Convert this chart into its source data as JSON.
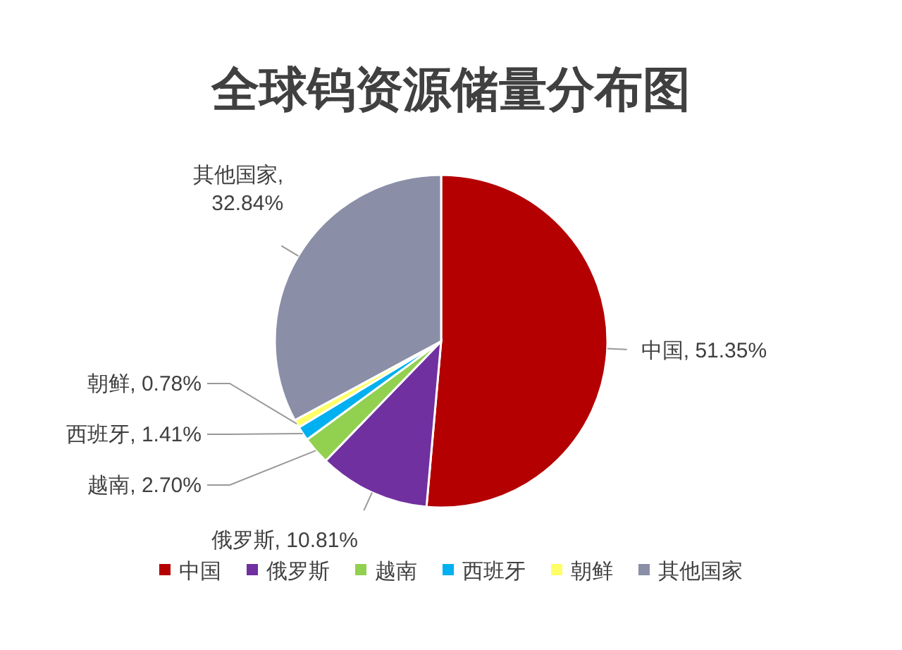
{
  "chart_data": {
    "type": "pie",
    "title": "全球钨资源储量分布图",
    "categories": [
      "中国",
      "俄罗斯",
      "越南",
      "西班牙",
      "朝鲜",
      "其他国家"
    ],
    "values": [
      51.35,
      10.81,
      2.7,
      1.41,
      0.78,
      32.84
    ],
    "colors": [
      "#b40000",
      "#7030a0",
      "#92d050",
      "#00b0f0",
      "#ffff66",
      "#8a8ea6"
    ],
    "value_labels": [
      "中国, 51.35%",
      "俄罗斯, 10.81%",
      "越南, 2.70%",
      "西班牙, 1.41%",
      "朝鲜, 0.78%",
      "其他国家, 32.84%"
    ],
    "legend": "bottom"
  }
}
